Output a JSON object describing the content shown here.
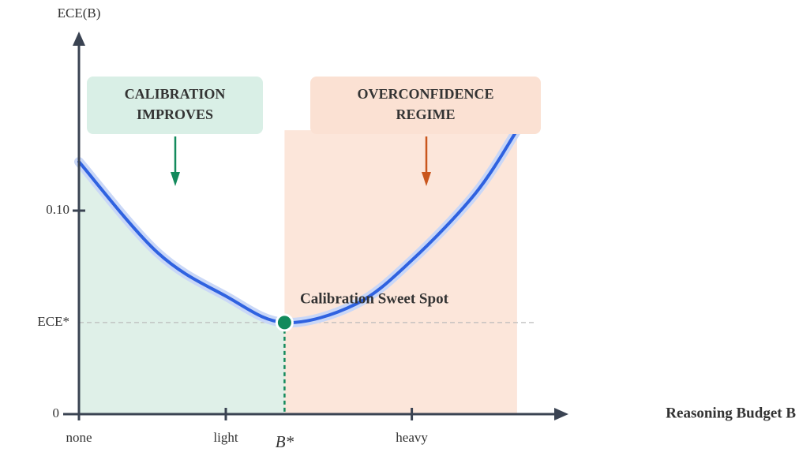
{
  "chart_data": {
    "type": "line",
    "y_label": "ECE(B)",
    "x_label": "Reasoning Budget B",
    "x": [
      0,
      0.16,
      0.3,
      0.42,
      0.565,
      0.68,
      0.81,
      0.895
    ],
    "series": [
      {
        "color": "#2f62e0",
        "values": [
          0.124,
          0.0795,
          0.058,
          0.045,
          0.054,
          0.0756,
          0.1085,
          0.1395
        ]
      }
    ],
    "xlim": [
      0,
      1
    ],
    "ylim": [
      0,
      0.188
    ],
    "xticks": [
      {
        "value": 0,
        "label": "none"
      },
      {
        "value": 0.3,
        "label": "light"
      },
      {
        "value": 0.42,
        "label": "B*"
      },
      {
        "value": 0.68,
        "label": "heavy"
      }
    ],
    "yticks": [
      0,
      {
        "value": 0.045,
        "label": "ECE*"
      },
      {
        "value": 0.1,
        "label": "0.10"
      }
    ],
    "annotations": [
      {
        "lines": [
          "CALIBRATION",
          "IMPROVES"
        ],
        "color": "#138a5c",
        "fill": "#d9efe6"
      },
      {
        "lines": [
          "OVERCONFIDENCE",
          "REGIME"
        ],
        "color": "#c9561d",
        "fill": "#fbe1d3"
      },
      {
        "lines": [
          "Calibration Sweet Spot"
        ],
        "color": "#138a5c"
      }
    ]
  }
}
